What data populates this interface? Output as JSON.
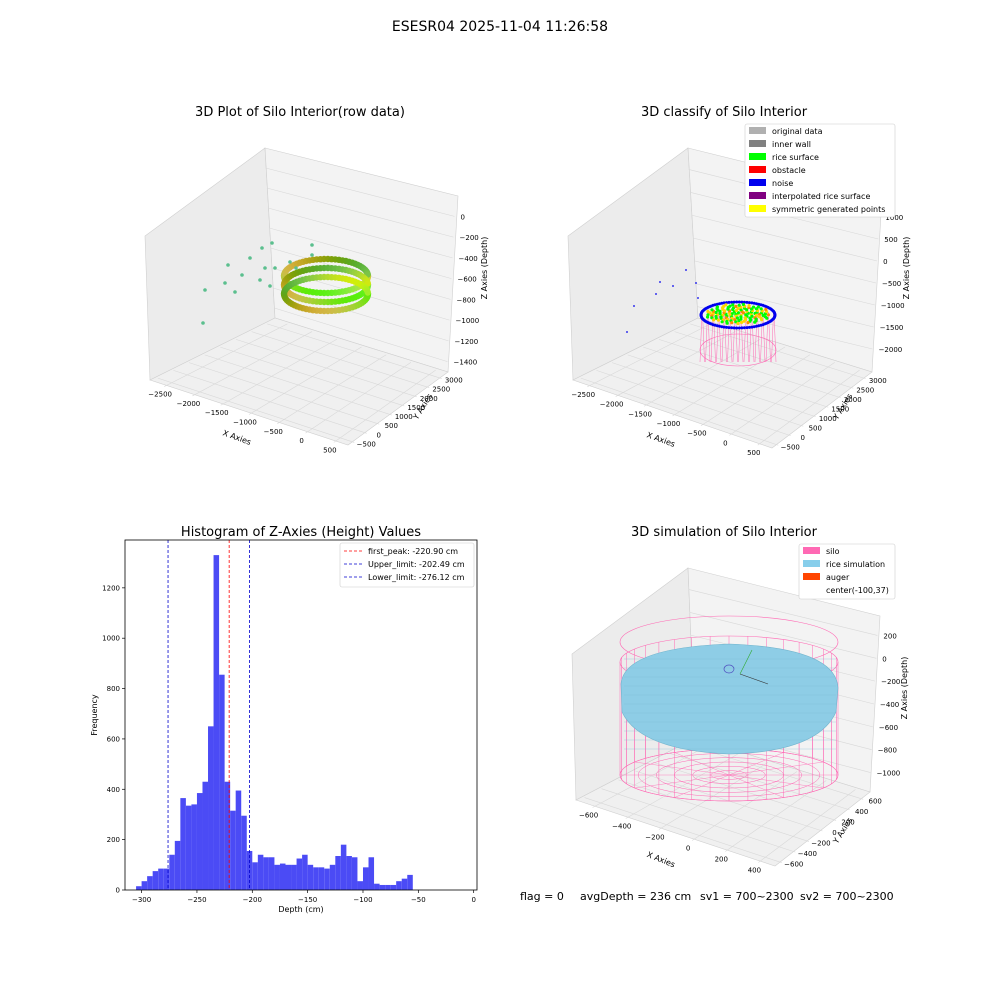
{
  "suptitle": "ESESR04 2025-11-04 11:26:58",
  "footer": {
    "flag": "flag = 0",
    "avg": "avgDepth = 236 cm",
    "sv1": "sv1 = 700~2300",
    "sv2": "sv2 = 700~2300"
  },
  "colors": {
    "hist": "#4b4bf5",
    "peak": "#ff0000",
    "limit": "#0000cc",
    "silo": "#ff69b4",
    "rice": "#8ecde6",
    "pane": "#f2f2f2",
    "grid": "#d8d8d8"
  },
  "chart_data": [
    {
      "type": "scatter3d",
      "title": "3D Plot of Silo Interior(row data)",
      "xlabel": "X Axies",
      "ylabel": "Y Axies",
      "zlabel": "Z Axies (Depth)",
      "xticks": [
        "−2500",
        "−2000",
        "−1500",
        "−1000",
        "−500",
        "0",
        "500"
      ],
      "yticks": [
        "−500",
        "0",
        "500",
        "1000",
        "1500",
        "2000",
        "2500",
        "3000"
      ],
      "zticks": [
        "0",
        "−200",
        "−400",
        "−600",
        "−800",
        "−1000",
        "−1200",
        "−1400"
      ]
    },
    {
      "type": "scatter3d",
      "title": "3D classify of Silo Interior",
      "xlabel": "X Axies",
      "ylabel": "Y Axies",
      "zlabel": "Z Axies (Depth)",
      "xticks": [
        "−2500",
        "−2000",
        "−1500",
        "−1000",
        "−500",
        "0",
        "500"
      ],
      "yticks": [
        "−500",
        "0",
        "500",
        "1000",
        "1500",
        "2000",
        "2500",
        "3000"
      ],
      "zticks": [
        "1000",
        "500",
        "0",
        "−500",
        "−1000",
        "−1500",
        "−2000"
      ],
      "legend": [
        {
          "label": "original data",
          "color": "#b0b0b0"
        },
        {
          "label": "inner wall",
          "color": "#808080"
        },
        {
          "label": "rice surface",
          "color": "#00ff00"
        },
        {
          "label": "obstacle",
          "color": "#ff0000"
        },
        {
          "label": "noise",
          "color": "#0000ee"
        },
        {
          "label": "interpolated rice surface",
          "color": "#800080"
        },
        {
          "label": "symmetric generated points",
          "color": "#ffff00"
        }
      ]
    },
    {
      "type": "bar",
      "title": "Histogram of Z-Axies (Height) Values",
      "xlabel": "Depth (cm)",
      "ylabel": "Frequency",
      "xlim": [
        -315,
        3
      ],
      "ylim": [
        0,
        1390
      ],
      "bin_start": -305,
      "bin_width": 5,
      "values": [
        15,
        35,
        55,
        75,
        85,
        85,
        140,
        195,
        365,
        335,
        340,
        385,
        430,
        650,
        1330,
        855,
        430,
        315,
        395,
        295,
        155,
        110,
        140,
        130,
        130,
        100,
        105,
        100,
        100,
        125,
        140,
        100,
        90,
        90,
        85,
        100,
        135,
        180,
        135,
        130,
        35,
        90,
        130,
        25,
        20,
        20,
        20,
        35,
        45,
        60
      ],
      "xticks": [
        -300,
        -250,
        -200,
        -150,
        -100,
        -50,
        0
      ],
      "yticks": [
        0,
        200,
        400,
        600,
        800,
        1000,
        1200
      ],
      "vlines": [
        {
          "x": -220.9,
          "label": "first_peak: -220.90 cm",
          "kind": "peak"
        },
        {
          "x": -202.49,
          "label": "Upper_limit: -202.49 cm",
          "kind": "limit"
        },
        {
          "x": -276.12,
          "label": "Lower_limit: -276.12 cm",
          "kind": "limit"
        }
      ]
    },
    {
      "type": "surface3d",
      "title": "3D simulation of Silo Interior",
      "xlabel": "X Axies",
      "ylabel": "Y Axies",
      "zlabel": "Z Axies (Depth)",
      "xticks": [
        "−600",
        "−400",
        "−200",
        "0",
        "200",
        "400"
      ],
      "yticks": [
        "−600",
        "−400",
        "−200",
        "0",
        "200",
        "400",
        "600"
      ],
      "zticks": [
        "200",
        "0",
        "−200",
        "−400",
        "−600",
        "−800",
        "−1000"
      ],
      "legend": [
        {
          "label": "silo",
          "color": "#ff69b4"
        },
        {
          "label": "rice simulation",
          "color": "#87ceeb"
        },
        {
          "label": "auger",
          "color": "#ff4500"
        },
        {
          "label": "center(-100,37)",
          "color": ""
        }
      ]
    }
  ]
}
